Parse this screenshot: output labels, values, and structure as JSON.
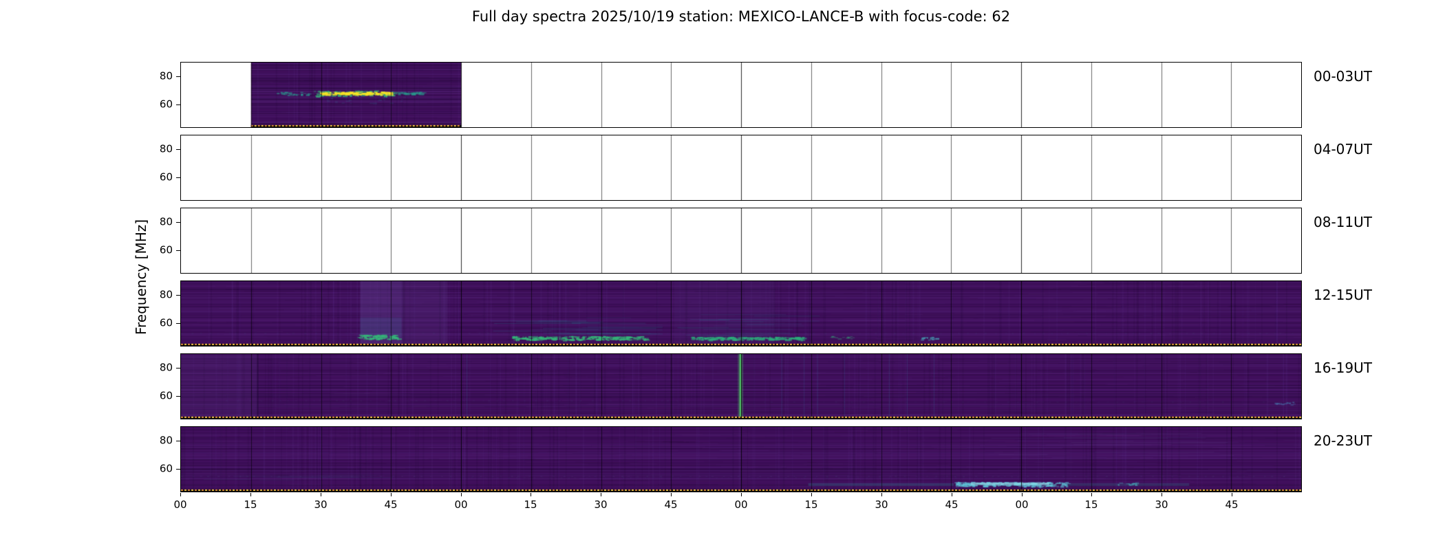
{
  "chart_data": {
    "type": "heatmap",
    "title": "Full day spectra 2025/10/19 station: MEXICO-LANCE-B with focus-code: 62",
    "ylabel": "Frequency [MHz]",
    "freq_range": [
      44,
      90
    ],
    "ytick_labels": [
      "80",
      "60"
    ],
    "ytick_freqs": [
      80,
      60
    ],
    "xticks": [
      "00",
      "15",
      "30",
      "45",
      "00",
      "15",
      "30",
      "45",
      "00",
      "15",
      "30",
      "45",
      "00",
      "15",
      "30",
      "45"
    ],
    "minutes_per_panel": 240,
    "grid_divisions": 16,
    "colors": {
      "base": "#400f5c",
      "grid": "#000000",
      "dotline": [
        "#e8973a",
        "#ffd04a"
      ],
      "bright": "#fde725",
      "green": "#35b779",
      "teal": "#2a9d8f"
    },
    "panels": [
      {
        "label": "00-03UT",
        "seed": 11,
        "segments": [
          {
            "x0": 0.0625,
            "x1": 0.25,
            "dotline": true
          }
        ],
        "features": [
          {
            "type": "dots",
            "x0": 0.085,
            "x1": 0.115,
            "f0": 67,
            "f1": 69.2,
            "color": "#2a9d8f",
            "alpha": 0.75,
            "density": 0.5
          },
          {
            "type": "hband",
            "noisy": true,
            "x0": 0.118,
            "x1": 0.19,
            "f0": 66.4,
            "f1": 70.2,
            "color": "#35b779",
            "alpha": 0.8
          },
          {
            "type": "hband",
            "noisy": true,
            "x0": 0.124,
            "x1": 0.186,
            "f0": 67.4,
            "f1": 69.4,
            "color": "#fde725",
            "alpha": 0.9
          },
          {
            "type": "hband",
            "noisy": true,
            "x0": 0.19,
            "x1": 0.216,
            "f0": 67.8,
            "f1": 69.3,
            "color": "#2a9d8f",
            "alpha": 0.5
          },
          {
            "type": "dots",
            "x0": 0.12,
            "x1": 0.2,
            "f0": 61,
            "f1": 66,
            "color": "#31688e",
            "alpha": 0.25,
            "density": 0.15
          }
        ]
      },
      {
        "label": "04-07UT",
        "seed": 2,
        "segments": [],
        "features": []
      },
      {
        "label": "08-11UT",
        "seed": 3,
        "segments": [],
        "features": []
      },
      {
        "label": "12-15UT",
        "seed": 4,
        "segments": [
          {
            "x0": 0,
            "x1": 1,
            "dotline": true
          }
        ],
        "features": [
          {
            "type": "vwash",
            "x0": 0.16,
            "x1": 0.197,
            "color": "#6b4fa0",
            "alpha": 0.3
          },
          {
            "type": "hband",
            "x0": 0.16,
            "x1": 0.197,
            "f0": 50,
            "f1": 64,
            "color": "#31688e",
            "alpha": 0.18
          },
          {
            "type": "hband",
            "noisy": true,
            "x0": 0.157,
            "x1": 0.193,
            "f0": 49,
            "f1": 52,
            "color": "#35b779",
            "alpha": 0.9
          },
          {
            "type": "vwash",
            "x0": 0.197,
            "x1": 0.238,
            "color": "#5a3d8a",
            "alpha": 0.22
          },
          {
            "type": "streaks",
            "x0": 0.27,
            "x1": 0.43,
            "f0": 52,
            "f1": 64,
            "color": "#2e6f8e",
            "alpha": 0.35,
            "count": 20
          },
          {
            "type": "hband",
            "noisy": true,
            "x0": 0.295,
            "x1": 0.415,
            "f0": 48.5,
            "f1": 51,
            "color": "#35b779",
            "alpha": 0.85
          },
          {
            "type": "streaks",
            "x0": 0.43,
            "x1": 0.57,
            "f0": 50,
            "f1": 67,
            "color": "#2e6f8e",
            "alpha": 0.28,
            "count": 18
          },
          {
            "type": "vwash",
            "x0": 0.44,
            "x1": 0.53,
            "color": "#53307f",
            "alpha": 0.16
          },
          {
            "type": "hband",
            "noisy": true,
            "x0": 0.455,
            "x1": 0.555,
            "f0": 48.5,
            "f1": 50.5,
            "color": "#2db27d",
            "alpha": 0.7
          },
          {
            "type": "dots",
            "x0": 0.575,
            "x1": 0.6,
            "f0": 49,
            "f1": 51,
            "color": "#35b779",
            "alpha": 0.5,
            "density": 0.3
          },
          {
            "type": "dotrow",
            "x0": 0.0,
            "x1": 1.0,
            "f": 53,
            "color": "#3f7f93",
            "alpha": 0.15
          },
          {
            "type": "dots",
            "x0": 0.66,
            "x1": 0.675,
            "f0": 48.5,
            "f1": 50.5,
            "color": "#4ac1c9",
            "alpha": 0.65,
            "density": 0.6
          }
        ]
      },
      {
        "label": "16-19UT",
        "seed": 5,
        "segments": [
          {
            "x0": 0,
            "x1": 1,
            "dotline": true
          }
        ],
        "features": [
          {
            "type": "vwash",
            "x0": 0.0,
            "x1": 0.068,
            "color": "#53307f",
            "alpha": 0.2
          },
          {
            "type": "vline",
            "x": 0.0685,
            "w": 2,
            "color": "#1a0830",
            "alpha": 0.5
          },
          {
            "type": "vline",
            "x": 0.4995,
            "w": 3,
            "color": "#52c569",
            "alpha": 0.95,
            "glow": true
          },
          {
            "type": "vlines",
            "xs": [
              0.255,
              0.536,
              0.556,
              0.568,
              0.592,
              0.632,
              0.648,
              0.672
            ],
            "w": 1,
            "color": "#3a6ea5",
            "alpha": 0.25
          },
          {
            "type": "dotrow",
            "x0": 0.04,
            "x1": 0.46,
            "f": 57,
            "color": "#58a0ae",
            "alpha": 0.12
          },
          {
            "type": "dotrow",
            "x0": 0.52,
            "x1": 0.97,
            "f": 56,
            "color": "#58a0ae",
            "alpha": 0.1
          },
          {
            "type": "dots",
            "x0": 0.975,
            "x1": 0.995,
            "f0": 54,
            "f1": 56,
            "color": "#4a90c2",
            "alpha": 0.5,
            "density": 0.4
          }
        ]
      },
      {
        "label": "20-23UT",
        "seed": 6,
        "segments": [
          {
            "x0": 0,
            "x1": 1,
            "dotline": true
          }
        ],
        "features": [
          {
            "type": "dotrow",
            "x0": 0.0,
            "x1": 1.0,
            "f": 55,
            "color": "#58a0ae",
            "alpha": 0.14
          },
          {
            "type": "dotrow",
            "x0": 0.25,
            "x1": 0.75,
            "f": 54,
            "color": "#58a0ae",
            "alpha": 0.08
          },
          {
            "type": "hband",
            "x0": 0.56,
            "x1": 0.69,
            "f0": 48,
            "f1": 50,
            "color": "#35859a",
            "alpha": 0.3
          },
          {
            "type": "hband",
            "noisy": true,
            "x0": 0.69,
            "x1": 0.79,
            "f0": 48,
            "f1": 51,
            "color": "#5fc4d8",
            "alpha": 0.8
          },
          {
            "type": "hband",
            "x0": 0.705,
            "x1": 0.775,
            "f0": 48.6,
            "f1": 50.4,
            "color": "#8fdde9",
            "alpha": 0.7
          },
          {
            "type": "hband",
            "x0": 0.79,
            "x1": 0.9,
            "f0": 48,
            "f1": 50,
            "color": "#35859a",
            "alpha": 0.25
          },
          {
            "type": "streaks",
            "x0": 0.7,
            "x1": 0.95,
            "f0": 68,
            "f1": 86,
            "color": "#6b4fa0",
            "alpha": 0.18,
            "count": 24
          },
          {
            "type": "streaks",
            "x0": 0.02,
            "x1": 0.2,
            "f0": 52,
            "f1": 58,
            "color": "#3f7f93",
            "alpha": 0.12,
            "count": 8
          },
          {
            "type": "dots",
            "x0": 0.83,
            "x1": 0.855,
            "f0": 49,
            "f1": 51,
            "color": "#4ac1c9",
            "alpha": 0.5,
            "density": 0.4
          }
        ]
      }
    ]
  }
}
